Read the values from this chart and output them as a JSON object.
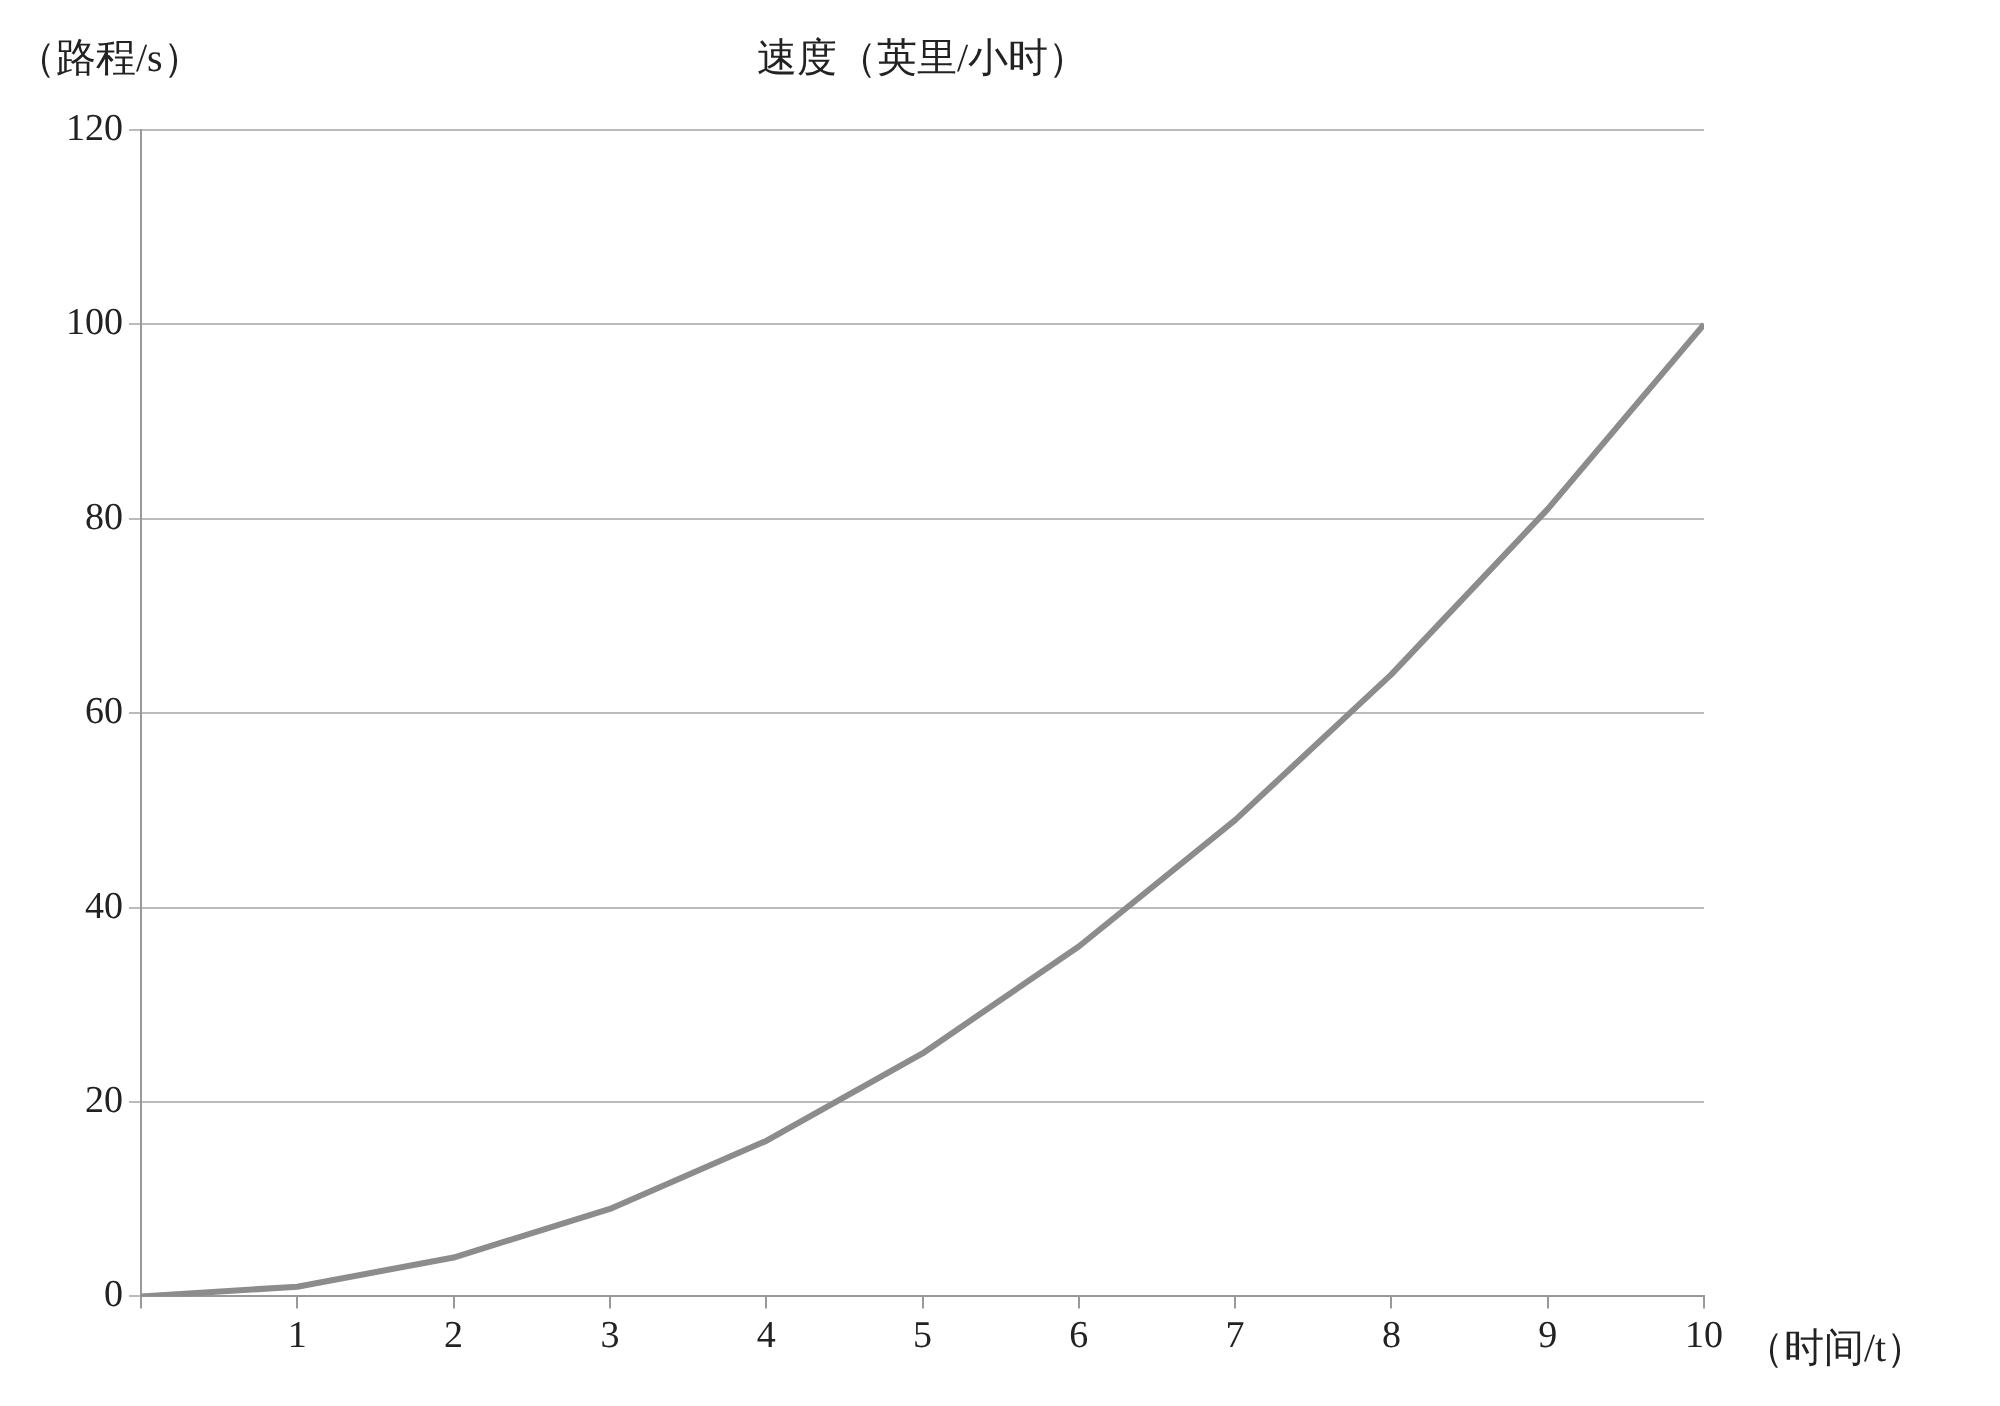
{
  "chart_data": {
    "type": "line",
    "title": "速度（英里/小时）",
    "ylabel": "（路程/s）",
    "xlabel": "（时间/t）",
    "x": [
      0,
      1,
      2,
      3,
      4,
      5,
      6,
      7,
      8,
      9,
      10
    ],
    "series": [
      {
        "color": "#8c8c8c",
        "values": [
          0,
          1,
          4,
          9,
          16,
          25,
          36,
          49,
          64,
          81,
          100
        ]
      }
    ],
    "xlim": [
      0,
      10
    ],
    "xticks": [
      {
        "value": 0,
        "label": null
      },
      1,
      2,
      3,
      4,
      5,
      6,
      7,
      8,
      9,
      10
    ],
    "ylim": [
      0,
      120
    ],
    "yticks": [
      0,
      20,
      40,
      60,
      80,
      100,
      120
    ],
    "grid": "y",
    "legend": false,
    "marker": "none",
    "line_style": "solid"
  }
}
